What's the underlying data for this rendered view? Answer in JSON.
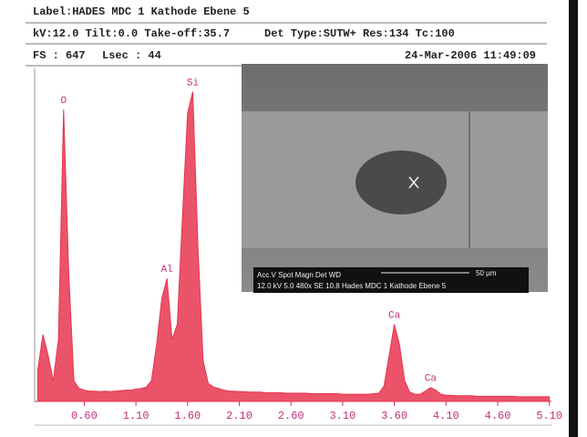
{
  "header": {
    "line1": "Label:HADES MDC 1 Kathode Ebene 5",
    "line2_left": "kV:12.0 Tilt:0.0 Take-off:35.7",
    "line2_right": "Det Type:SUTW+  Res:134  Tc:100",
    "fs": "FS : 647",
    "lsec": "Lsec : 44",
    "datetime": "24-Mar-2006 11:49:09"
  },
  "inset": {
    "caption_top": "Acc.V  Spot Magn    Det  WD",
    "scale": "50 µm",
    "caption_bottom": "12.0 kV 5.0  480x    SE   10.8  Hades MDC 1 Kathode Ebene 5"
  },
  "chart_data": {
    "type": "area",
    "color": "#e8354f",
    "xlim": [
      0.12,
      5.12
    ],
    "ylim": [
      0,
      647
    ],
    "xticks": [
      {
        "value": 0.6,
        "label": "0.60"
      },
      {
        "value": 1.1,
        "label": "1.10"
      },
      {
        "value": 1.6,
        "label": "1.60"
      },
      {
        "value": 2.1,
        "label": "2.10"
      },
      {
        "value": 2.6,
        "label": "2.60"
      },
      {
        "value": 3.1,
        "label": "3.10"
      },
      {
        "value": 3.6,
        "label": "3.60"
      },
      {
        "value": 4.1,
        "label": "4.10"
      },
      {
        "value": 4.6,
        "label": "4.60"
      },
      {
        "value": 5.1,
        "label": "5.10"
      }
    ],
    "x": [
      0.15,
      0.2,
      0.25,
      0.3,
      0.35,
      0.4,
      0.45,
      0.5,
      0.55,
      0.6,
      0.65,
      0.7,
      0.75,
      0.8,
      0.85,
      0.9,
      0.95,
      1.0,
      1.05,
      1.1,
      1.15,
      1.2,
      1.25,
      1.3,
      1.35,
      1.4,
      1.45,
      1.5,
      1.55,
      1.6,
      1.65,
      1.7,
      1.75,
      1.8,
      1.85,
      1.9,
      1.95,
      2.0,
      2.05,
      2.1,
      2.15,
      2.2,
      2.25,
      2.3,
      2.35,
      2.4,
      2.45,
      2.5,
      2.55,
      2.6,
      2.65,
      2.7,
      2.75,
      2.8,
      2.85,
      2.9,
      2.95,
      3.0,
      3.05,
      3.1,
      3.15,
      3.2,
      3.25,
      3.3,
      3.35,
      3.4,
      3.45,
      3.5,
      3.55,
      3.6,
      3.65,
      3.7,
      3.75,
      3.8,
      3.85,
      3.9,
      3.95,
      4.0,
      4.05,
      4.1,
      4.15,
      4.2,
      4.25,
      4.3,
      4.35,
      4.4,
      4.45,
      4.5,
      4.55,
      4.6,
      4.65,
      4.7,
      4.75,
      4.8,
      4.85,
      4.9,
      4.95,
      5.0,
      5.05,
      5.1
    ],
    "series": [
      {
        "color": "#e8354f",
        "values": [
          60,
          130,
          90,
          40,
          120,
          567,
          250,
          40,
          25,
          22,
          20,
          20,
          19,
          20,
          19,
          20,
          21,
          22,
          22,
          24,
          25,
          28,
          40,
          110,
          200,
          239,
          120,
          150,
          360,
          560,
          602,
          300,
          80,
          35,
          28,
          25,
          22,
          20,
          20,
          19,
          19,
          18,
          18,
          18,
          17,
          17,
          17,
          17,
          16,
          16,
          16,
          16,
          16,
          15,
          15,
          15,
          15,
          15,
          15,
          14,
          14,
          14,
          14,
          14,
          14,
          15,
          16,
          30,
          90,
          150,
          110,
          40,
          18,
          14,
          14,
          20,
          27,
          22,
          14,
          12,
          12,
          11,
          11,
          11,
          11,
          10,
          10,
          10,
          10,
          10,
          10,
          10,
          10,
          9,
          9,
          9,
          9,
          9,
          9,
          9
        ]
      }
    ],
    "annotations": [
      {
        "text": "O",
        "x": 0.4,
        "y": 567
      },
      {
        "text": "Si",
        "x": 1.65,
        "y": 602
      },
      {
        "text": "Al",
        "x": 1.4,
        "y": 239
      },
      {
        "text": "Ca",
        "x": 3.6,
        "y": 150
      },
      {
        "text": "Ca",
        "x": 3.95,
        "y": 27
      }
    ]
  }
}
